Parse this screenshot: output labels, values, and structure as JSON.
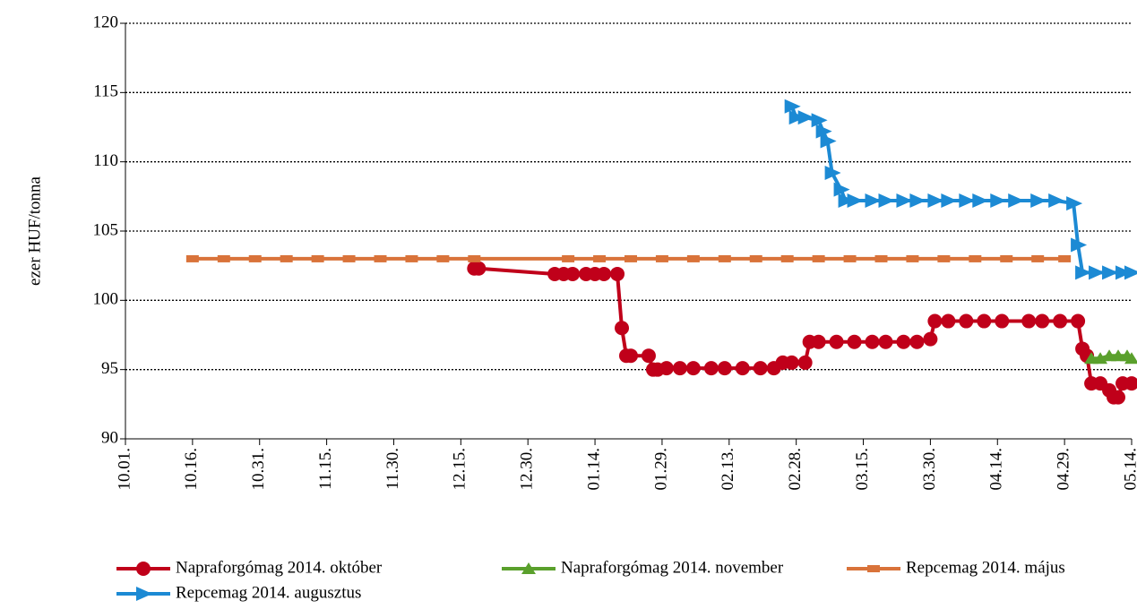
{
  "chart_data": {
    "type": "line",
    "y_label": "ezer HUF/tonna",
    "ylim": [
      90,
      120
    ],
    "yticks": [
      90,
      95,
      100,
      105,
      110,
      115,
      120
    ],
    "grid": true,
    "xlim": [
      "10.01.",
      "05.14."
    ],
    "xticks": [
      "10.01.",
      "10.16.",
      "10.31.",
      "11.15.",
      "11.30.",
      "12.15.",
      "12.30.",
      "01.14.",
      "01.29.",
      "02.13.",
      "02.28.",
      "03.15.",
      "03.30.",
      "04.14.",
      "04.29.",
      "05.14."
    ],
    "legend": "bottom",
    "series": [
      {
        "name": "Napraforgómag 2014. október",
        "color": "#c0001a",
        "marker": "circle",
        "x": [
          "12.18.",
          "12.19.",
          "01.05.",
          "01.07.",
          "01.09.",
          "01.12.",
          "01.14.",
          "01.16.",
          "01.19.",
          "01.20.",
          "01.21.",
          "01.22.",
          "01.26.",
          "01.27.",
          "01.28.",
          "01.30.",
          "02.02.",
          "02.05.",
          "02.09.",
          "02.12.",
          "02.16.",
          "02.20.",
          "02.23.",
          "02.25.",
          "02.27.",
          "03.02.",
          "03.03.",
          "03.05.",
          "03.09.",
          "03.13.",
          "03.17.",
          "03.20.",
          "03.24.",
          "03.27.",
          "03.30.",
          "03.31.",
          "04.03.",
          "04.07.",
          "04.11.",
          "04.15.",
          "04.21.",
          "04.24.",
          "04.28.",
          "05.02.",
          "05.03.",
          "05.04.",
          "05.05.",
          "05.07.",
          "05.09.",
          "05.10.",
          "05.11.",
          "05.12.",
          "05.14."
        ],
        "values": [
          102.3,
          102.3,
          101.9,
          101.9,
          101.9,
          101.9,
          101.9,
          101.9,
          101.9,
          98,
          96,
          96,
          96,
          95,
          95,
          95.1,
          95.1,
          95.1,
          95.1,
          95.1,
          95.1,
          95.1,
          95.1,
          95.5,
          95.5,
          95.5,
          97,
          97,
          97,
          97,
          97,
          97,
          97,
          97,
          97.2,
          98.5,
          98.5,
          98.5,
          98.5,
          98.5,
          98.5,
          98.5,
          98.5,
          98.5,
          96.5,
          96,
          94,
          94,
          93.5,
          93,
          93,
          94,
          94
        ]
      },
      {
        "name": "Napraforgómag 2014. november",
        "color": "#5aa02c",
        "marker": "triangle",
        "x": [
          "05.05.",
          "05.07.",
          "05.09.",
          "05.11.",
          "05.13.",
          "05.14."
        ],
        "values": [
          95.8,
          95.8,
          96,
          96,
          96,
          95.8
        ]
      },
      {
        "name": "Repcemag 2014. május",
        "color": "#d9733a",
        "marker": "square",
        "x": [
          "10.16.",
          "10.23.",
          "10.30.",
          "11.06.",
          "11.13.",
          "11.20.",
          "11.27.",
          "12.04.",
          "12.11.",
          "12.18.",
          "01.08.",
          "01.15.",
          "01.22.",
          "01.29.",
          "02.05.",
          "02.12.",
          "02.19.",
          "02.26.",
          "03.05.",
          "03.12.",
          "03.19.",
          "03.26.",
          "04.02.",
          "04.09.",
          "04.16.",
          "04.23.",
          "04.29."
        ],
        "values": [
          103,
          103,
          103,
          103,
          103,
          103,
          103,
          103,
          103,
          103,
          103,
          103,
          103,
          103,
          103,
          103,
          103,
          103,
          103,
          103,
          103,
          103,
          103,
          103,
          103,
          103,
          103
        ]
      },
      {
        "name": "Repcemag 2014. augusztus",
        "color": "#1c8ad4",
        "marker": "arrow",
        "x": [
          "02.27.",
          "02.28.",
          "03.02.",
          "03.05.",
          "03.06.",
          "03.07.",
          "03.08.",
          "03.10.",
          "03.11.",
          "03.13.",
          "03.17.",
          "03.20.",
          "03.24.",
          "03.27.",
          "03.31.",
          "04.03.",
          "04.07.",
          "04.10.",
          "04.14.",
          "04.18.",
          "04.23.",
          "04.27.",
          "05.01.",
          "05.02.",
          "05.03.",
          "05.06.",
          "05.09.",
          "05.12.",
          "05.14."
        ],
        "values": [
          114,
          113.2,
          113.2,
          113,
          112.2,
          111.5,
          109.2,
          108,
          107.2,
          107.2,
          107.2,
          107.2,
          107.2,
          107.2,
          107.2,
          107.2,
          107.2,
          107.2,
          107.2,
          107.2,
          107.2,
          107.2,
          107,
          104,
          102,
          102,
          102,
          102,
          102
        ]
      }
    ]
  }
}
